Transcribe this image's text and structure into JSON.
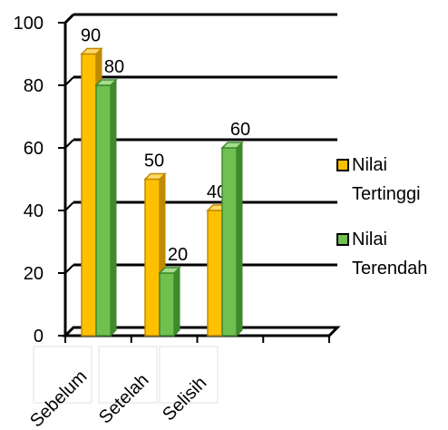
{
  "chart_data": {
    "type": "bar",
    "style": "3d-clustered-column",
    "categories": [
      "Sebelum",
      "Setelah",
      "Selisih"
    ],
    "series": [
      {
        "name": "Nilai Tertinggi",
        "values": [
          90,
          50,
          40
        ],
        "color": "#FFC000",
        "dark": "#C08A00",
        "light": "#FFD966"
      },
      {
        "name": "Nilai Terendah",
        "values": [
          80,
          20,
          60
        ],
        "color": "#70C050",
        "dark": "#3F8A2C",
        "light": "#A6DD8C"
      }
    ],
    "yticks": [
      0,
      20,
      40,
      60,
      80,
      100
    ],
    "ylim": [
      0,
      100
    ],
    "grid": true,
    "legend": "right",
    "title": "",
    "xlabel": "",
    "ylabel": ""
  }
}
